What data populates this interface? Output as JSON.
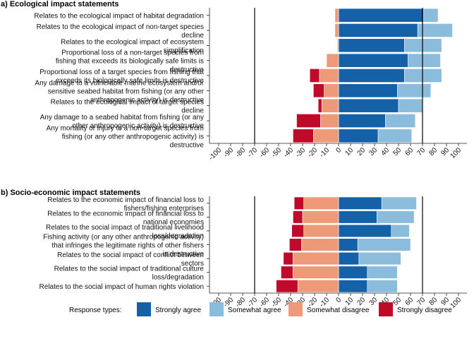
{
  "chart_data": [
    {
      "type": "bar",
      "orientation": "horizontal-diverging",
      "title": "a) Ecological impact statements",
      "xlim": [
        -100,
        100
      ],
      "x_ticks": [
        -100,
        -90,
        -80,
        -70,
        -60,
        -50,
        -40,
        -30,
        -20,
        -10,
        0,
        10,
        20,
        30,
        40,
        50,
        60,
        70,
        80,
        90,
        100
      ],
      "reference_lines": [
        -70,
        70
      ],
      "categories": [
        [
          "Relates to the ecological impact of habitat degradation"
        ],
        [
          "Relates to the ecological impact of non-target species",
          "decline"
        ],
        [
          "Relates to the ecological impact of ecosystem",
          "simplification"
        ],
        [
          "Proportional loss of a non-target species from",
          "fishing that exceeds its biologically safe limits is",
          "destructive"
        ],
        [
          "Proportional loss of a target species from fishing that",
          "exceeds its biologically safe limits is destructive"
        ],
        [
          "Any damage to a vulnerable marine ecosystem and/or",
          "sensitive seabed habitat from fishing (or any other",
          "anthropogenic activity) is destructive"
        ],
        [
          "Relates to the ecological impact of target species",
          "decline"
        ],
        [
          "Any damage to a seabed habitat from fishing (or any",
          "other anthropogenic activity) is destructive"
        ],
        [
          "Any mortality or injury to a non-target species from",
          "fishing (or any other anthropogenic activity) is",
          "destructive"
        ]
      ],
      "series": [
        {
          "name": "Strongly agree",
          "values": [
            71,
            66,
            55,
            58,
            55,
            49,
            50,
            39,
            33
          ]
        },
        {
          "name": "Somewhat agree",
          "values": [
            12,
            29,
            31,
            27,
            31,
            28,
            20,
            25,
            28
          ]
        },
        {
          "name": "Somewhat disagree",
          "values": [
            -3,
            -3,
            -1,
            -10,
            -16,
            -12,
            -14,
            -15,
            -21
          ]
        },
        {
          "name": "Strongly disagree",
          "values": [
            0,
            0,
            0,
            0,
            -8,
            -9,
            -3,
            -20,
            -17
          ]
        }
      ]
    },
    {
      "type": "bar",
      "orientation": "horizontal-diverging",
      "title": "b) Socio-economic impact statements",
      "xlim": [
        -100,
        100
      ],
      "x_ticks": [
        -100,
        -90,
        -80,
        -70,
        -60,
        -50,
        -40,
        -30,
        -20,
        -10,
        0,
        10,
        20,
        30,
        40,
        50,
        60,
        70,
        80,
        90,
        100
      ],
      "reference_lines": [
        -70,
        70
      ],
      "categories": [
        [
          "Relates to the economic impact of financial loss to",
          "fishers/fishing enterprises"
        ],
        [
          "Relates to the economic impact of financial loss to",
          "national economies"
        ],
        [
          "Relates to the social impact of traditional livelihood",
          "loss/degradation"
        ],
        [
          "Fishing activity (or any other anthropogenic activity)",
          "that infringes the legitimate rights of other fishers",
          "is destructive"
        ],
        [
          "Relates to the social impact of conflict between",
          "sectors"
        ],
        [
          "Relates to the social impact of traditional culture",
          "loss/degradation"
        ],
        [
          "Relates to the social impact of human rights violation"
        ]
      ],
      "series": [
        {
          "name": "Strongly agree",
          "values": [
            36,
            32,
            44,
            16,
            17,
            24,
            24
          ]
        },
        {
          "name": "Somewhat agree",
          "values": [
            29,
            31,
            15,
            44,
            35,
            25,
            25
          ]
        },
        {
          "name": "Somewhat disagree",
          "values": [
            -29,
            -30,
            -29,
            -31,
            -38,
            -38,
            -34
          ]
        },
        {
          "name": "Strongly disagree",
          "values": [
            -8,
            -8,
            -10,
            -10,
            -8,
            -10,
            -18
          ]
        }
      ]
    }
  ],
  "legend": {
    "title": "Response types:",
    "items": [
      {
        "label": "Strongly agree",
        "color": "#1461a8"
      },
      {
        "label": "Somewhat agree",
        "color": "#8bbcdb"
      },
      {
        "label": "Somewhat disagree",
        "color": "#ee9a78"
      },
      {
        "label": "Strongly disagree",
        "color": "#c00a2a"
      }
    ]
  }
}
